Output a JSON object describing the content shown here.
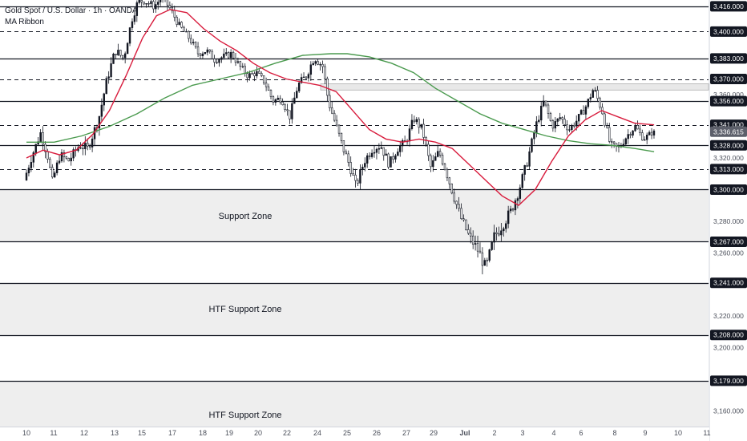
{
  "legend": {
    "symbol": "Gold Spot / U.S. Dollar · 1h · OANDA",
    "indicator": "MA Ribbon"
  },
  "colors": {
    "up_candle": "#131722",
    "down_candle": "#ffffff",
    "ma_fast": "#d81b3c",
    "ma_slow": "#4a9a4e",
    "zone_fill": "#eeeeee",
    "level_line": "#131722",
    "badge_bg": "#131722"
  },
  "chart_data": {
    "type": "line",
    "ylim": [
      3150,
      3420
    ],
    "x_ticks": [
      "10",
      "11",
      "12",
      "13",
      "15",
      "17",
      "18",
      "19",
      "20",
      "22",
      "24",
      "25",
      "26",
      "27",
      "29",
      "Jul",
      "2",
      "3",
      "4",
      "6",
      "8",
      "9",
      "10",
      "11"
    ],
    "y_ticks": [
      3416,
      3400,
      3383,
      3370,
      3360,
      3356,
      3341,
      3336.615,
      3328,
      3320,
      3313,
      3300,
      3280,
      3267,
      3260,
      3241,
      3220,
      3208,
      3200,
      3179,
      3160
    ],
    "badge_levels": [
      3416,
      3400,
      3383,
      3370,
      3356,
      3341,
      3328,
      3313,
      3300,
      3267,
      3241,
      3208,
      3179
    ],
    "current_price": 3336.615,
    "levels": [
      {
        "price": 3416,
        "style": "solid"
      },
      {
        "price": 3400,
        "style": "dashed"
      },
      {
        "price": 3383,
        "style": "solid"
      },
      {
        "price": 3370,
        "style": "dashed"
      },
      {
        "price": 3356,
        "style": "solid"
      },
      {
        "price": 3341,
        "style": "dashed"
      },
      {
        "price": 3328,
        "style": "solid"
      },
      {
        "price": 3313,
        "style": "dashed"
      },
      {
        "price": 3300,
        "style": "solid"
      },
      {
        "price": 3267,
        "style": "solid"
      },
      {
        "price": 3241,
        "style": "solid"
      },
      {
        "price": 3208,
        "style": "solid"
      },
      {
        "price": 3179,
        "style": "solid"
      }
    ],
    "zones": [
      {
        "label": "Support Zone",
        "top": 3300,
        "bottom": 3267
      },
      {
        "label": "HTF Support Zone",
        "top": 3241,
        "bottom": 3208
      },
      {
        "label": "HTF Support Zone",
        "top": 3179,
        "bottom": 3150
      }
    ],
    "resistance_band": {
      "top": 3367,
      "bottom": 3363
    },
    "price_path": [
      [
        0,
        3306
      ],
      [
        0.3,
        3322
      ],
      [
        0.6,
        3336
      ],
      [
        0.9,
        3318
      ],
      [
        1.0,
        3304
      ],
      [
        1.3,
        3322
      ],
      [
        1.6,
        3318
      ],
      [
        2.0,
        3328
      ],
      [
        2.3,
        3326
      ],
      [
        2.7,
        3345
      ],
      [
        3.0,
        3370
      ],
      [
        3.3,
        3388
      ],
      [
        3.6,
        3383
      ],
      [
        3.9,
        3408
      ],
      [
        4.1,
        3418
      ],
      [
        4.3,
        3420
      ],
      [
        4.7,
        3416
      ],
      [
        5.0,
        3422
      ],
      [
        5.3,
        3414
      ],
      [
        5.6,
        3404
      ],
      [
        6.0,
        3395
      ],
      [
        6.3,
        3386
      ],
      [
        6.6,
        3388
      ],
      [
        6.9,
        3382
      ],
      [
        7.2,
        3384
      ],
      [
        7.5,
        3386
      ],
      [
        7.8,
        3378
      ],
      [
        8.1,
        3372
      ],
      [
        8.4,
        3374
      ],
      [
        8.7,
        3368
      ],
      [
        9.0,
        3356
      ],
      [
        9.3,
        3358
      ],
      [
        9.6,
        3346
      ],
      [
        9.9,
        3366
      ],
      [
        10.2,
        3372
      ],
      [
        10.5,
        3384
      ],
      [
        10.8,
        3378
      ],
      [
        11.0,
        3356
      ],
      [
        11.2,
        3345
      ],
      [
        11.5,
        3328
      ],
      [
        11.8,
        3314
      ],
      [
        12.0,
        3302
      ],
      [
        12.3,
        3318
      ],
      [
        12.6,
        3326
      ],
      [
        12.9,
        3328
      ],
      [
        13.2,
        3316
      ],
      [
        13.5,
        3326
      ],
      [
        13.8,
        3330
      ],
      [
        14.1,
        3345
      ],
      [
        14.4,
        3338
      ],
      [
        14.7,
        3314
      ],
      [
        15.0,
        3324
      ],
      [
        15.2,
        3315
      ],
      [
        15.5,
        3298
      ],
      [
        15.8,
        3282
      ],
      [
        16.1,
        3270
      ],
      [
        16.4,
        3262
      ],
      [
        16.7,
        3250
      ],
      [
        17.0,
        3270
      ],
      [
        17.3,
        3278
      ],
      [
        17.6,
        3286
      ],
      [
        17.9,
        3300
      ],
      [
        18.2,
        3318
      ],
      [
        18.5,
        3340
      ],
      [
        18.8,
        3356
      ],
      [
        19.1,
        3340
      ],
      [
        19.4,
        3346
      ],
      [
        19.7,
        3338
      ],
      [
        20.0,
        3344
      ],
      [
        20.3,
        3352
      ],
      [
        20.6,
        3364
      ],
      [
        20.9,
        3350
      ],
      [
        21.2,
        3328
      ],
      [
        21.5,
        3326
      ],
      [
        21.8,
        3334
      ],
      [
        22.1,
        3340
      ],
      [
        22.4,
        3332
      ],
      [
        22.7,
        3336
      ]
    ],
    "ma_fast_path": [
      [
        0,
        3320
      ],
      [
        0.6,
        3325
      ],
      [
        1.2,
        3322
      ],
      [
        1.8,
        3325
      ],
      [
        2.4,
        3335
      ],
      [
        3.0,
        3350
      ],
      [
        3.6,
        3372
      ],
      [
        4.2,
        3396
      ],
      [
        4.7,
        3410
      ],
      [
        5.2,
        3414
      ],
      [
        5.8,
        3412
      ],
      [
        6.4,
        3402
      ],
      [
        7.0,
        3394
      ],
      [
        7.6,
        3388
      ],
      [
        8.2,
        3380
      ],
      [
        8.8,
        3374
      ],
      [
        9.4,
        3370
      ],
      [
        10.0,
        3368
      ],
      [
        10.6,
        3366
      ],
      [
        11.2,
        3362
      ],
      [
        11.8,
        3350
      ],
      [
        12.4,
        3338
      ],
      [
        13.0,
        3332
      ],
      [
        13.6,
        3330
      ],
      [
        14.2,
        3332
      ],
      [
        14.8,
        3330
      ],
      [
        15.4,
        3326
      ],
      [
        16.0,
        3316
      ],
      [
        16.6,
        3306
      ],
      [
        17.2,
        3296
      ],
      [
        17.8,
        3290
      ],
      [
        18.4,
        3300
      ],
      [
        19.0,
        3318
      ],
      [
        19.6,
        3334
      ],
      [
        20.2,
        3344
      ],
      [
        20.8,
        3350
      ],
      [
        21.4,
        3346
      ],
      [
        22.0,
        3342
      ],
      [
        22.7,
        3341
      ]
    ],
    "ma_slow_path": [
      [
        0,
        3330
      ],
      [
        1.0,
        3330
      ],
      [
        2.0,
        3334
      ],
      [
        3.0,
        3340
      ],
      [
        4.0,
        3348
      ],
      [
        5.0,
        3358
      ],
      [
        6.0,
        3366
      ],
      [
        7.0,
        3370
      ],
      [
        8.0,
        3374
      ],
      [
        9.0,
        3380
      ],
      [
        10.0,
        3385
      ],
      [
        11.0,
        3386
      ],
      [
        11.6,
        3386
      ],
      [
        12.4,
        3384
      ],
      [
        13.2,
        3380
      ],
      [
        14.0,
        3374
      ],
      [
        14.8,
        3364
      ],
      [
        15.6,
        3356
      ],
      [
        16.4,
        3348
      ],
      [
        17.2,
        3342
      ],
      [
        18.0,
        3338
      ],
      [
        18.8,
        3334
      ],
      [
        19.6,
        3331
      ],
      [
        20.4,
        3329
      ],
      [
        21.2,
        3328
      ],
      [
        22.0,
        3326
      ],
      [
        22.7,
        3324
      ]
    ],
    "volatility": [
      [
        0,
        6
      ],
      [
        3,
        7
      ],
      [
        5,
        5
      ],
      [
        9,
        5
      ],
      [
        11,
        7
      ],
      [
        15,
        6
      ],
      [
        17,
        9
      ],
      [
        19,
        5
      ],
      [
        21,
        6
      ],
      [
        22.7,
        4
      ]
    ]
  }
}
